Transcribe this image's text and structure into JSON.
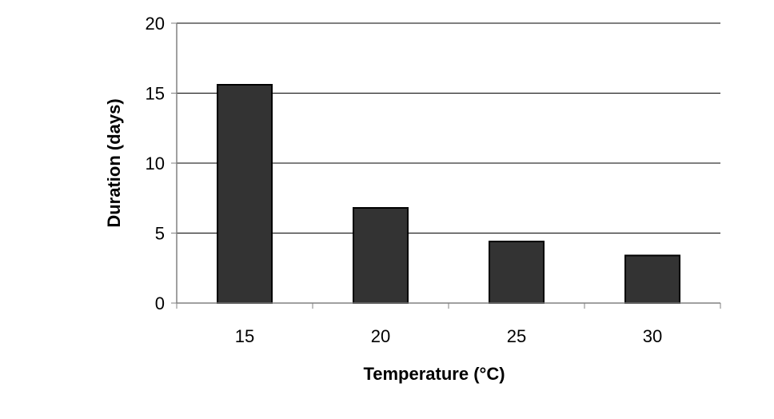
{
  "chart_data": {
    "type": "bar",
    "categories": [
      "15",
      "20",
      "25",
      "30"
    ],
    "values": [
      15.6,
      6.8,
      4.4,
      3.4
    ],
    "title": "",
    "xlabel": "Temperature (°C)",
    "ylabel": "Duration (days)",
    "ylim": [
      0,
      20
    ],
    "yticks": [
      "0",
      "5",
      "10",
      "15",
      "20"
    ],
    "grid": true,
    "legend": "none",
    "colors": {
      "bar_fill": "#333333",
      "bar_stroke": "#000000",
      "gridline": "#000000",
      "axis": "#808080"
    }
  }
}
